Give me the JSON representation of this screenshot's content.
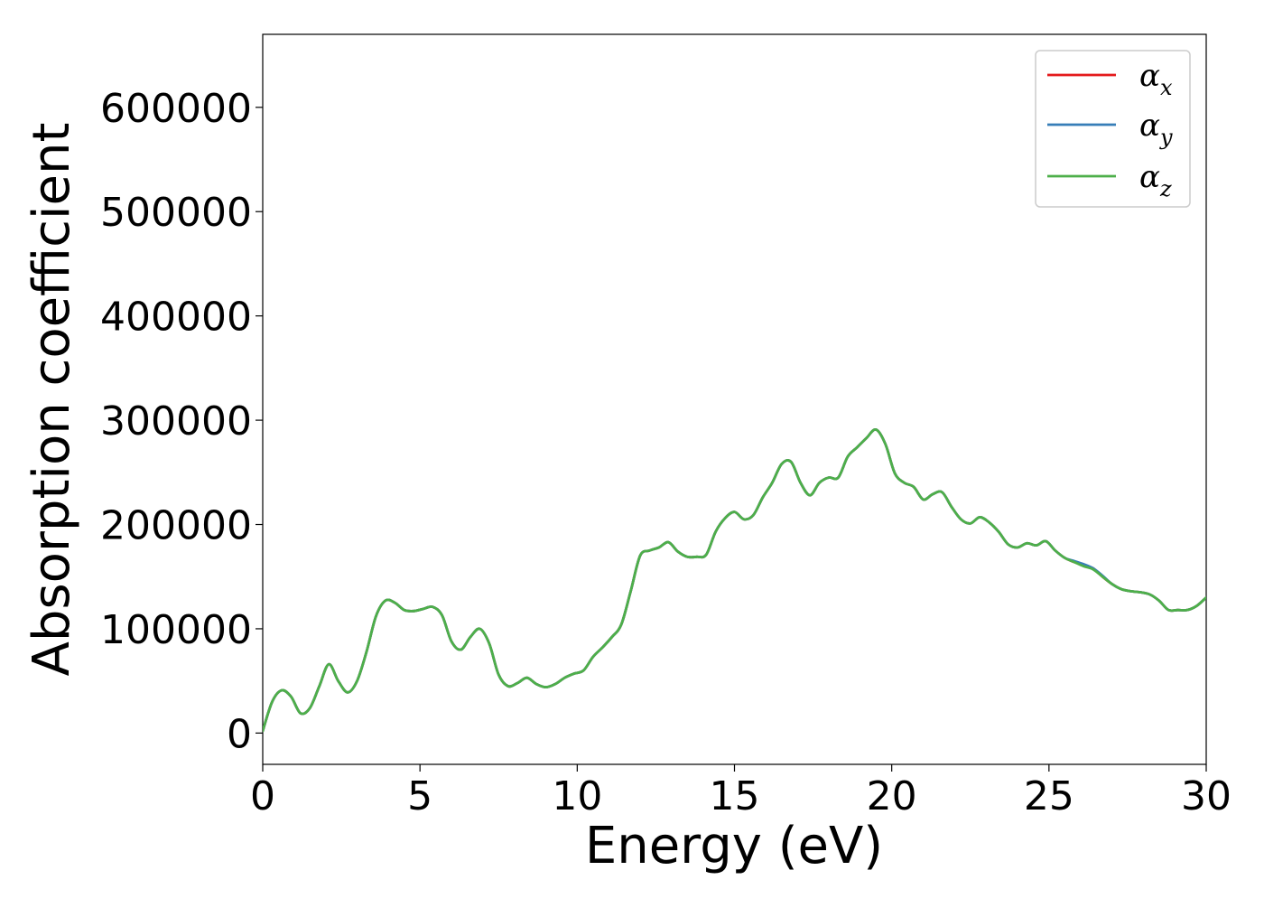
{
  "chart_data": {
    "type": "line",
    "xlabel": "Energy (eV)",
    "ylabel": "Absorption coefficient",
    "xlim": [
      0,
      30
    ],
    "ylim": [
      -30000,
      670000
    ],
    "xticks": [
      0,
      5,
      10,
      15,
      20,
      25,
      30
    ],
    "xtick_labels": [
      "0",
      "5",
      "10",
      "15",
      "20",
      "25",
      "30"
    ],
    "yticks": [
      0,
      100000,
      200000,
      300000,
      400000,
      500000,
      600000
    ],
    "ytick_labels": [
      "0",
      "100000",
      "200000",
      "300000",
      "400000",
      "500000",
      "600000"
    ],
    "grid": false,
    "legend_position": "top-right",
    "x": [
      0.0,
      0.3,
      0.6,
      0.9,
      1.2,
      1.5,
      1.8,
      2.1,
      2.4,
      2.7,
      3.0,
      3.3,
      3.6,
      3.9,
      4.2,
      4.5,
      4.8,
      5.1,
      5.4,
      5.7,
      6.0,
      6.3,
      6.6,
      6.9,
      7.2,
      7.5,
      7.8,
      8.1,
      8.4,
      8.7,
      9.0,
      9.3,
      9.6,
      9.9,
      10.2,
      10.5,
      10.8,
      11.1,
      11.4,
      11.7,
      12.0,
      12.3,
      12.6,
      12.9,
      13.2,
      13.5,
      13.8,
      14.1,
      14.4,
      14.7,
      15.0,
      15.3,
      15.6,
      15.9,
      16.2,
      16.5,
      16.8,
      17.1,
      17.4,
      17.7,
      18.0,
      18.3,
      18.6,
      18.9,
      19.2,
      19.5,
      19.8,
      20.1,
      20.4,
      20.7,
      21.0,
      21.3,
      21.6,
      21.9,
      22.2,
      22.5,
      22.8,
      23.1,
      23.4,
      23.7,
      24.0,
      24.3,
      24.6,
      24.9,
      25.2,
      25.5,
      25.8,
      26.1,
      26.4,
      26.7,
      27.0,
      27.3,
      27.6,
      27.9,
      28.2,
      28.5,
      28.8,
      29.1,
      29.4,
      29.7,
      30.0
    ],
    "series": [
      {
        "name": "α_x",
        "color": "#e41a1c",
        "values": [
          2000,
          30000,
          41000,
          35000,
          19000,
          24000,
          45000,
          66000,
          50000,
          39000,
          50000,
          78000,
          112000,
          127000,
          125000,
          118000,
          117000,
          119000,
          121000,
          113000,
          88000,
          80000,
          92000,
          100000,
          86000,
          56000,
          45000,
          48000,
          53000,
          47000,
          44000,
          47000,
          53000,
          57000,
          60000,
          73000,
          82000,
          92000,
          104000,
          136000,
          170000,
          175000,
          178000,
          183000,
          174000,
          169000,
          169000,
          171000,
          193000,
          206000,
          212000,
          205000,
          209000,
          226000,
          240000,
          258000,
          260000,
          240000,
          228000,
          240000,
          245000,
          245000,
          265000,
          274000,
          283000,
          291000,
          277000,
          249000,
          240000,
          236000,
          224000,
          229000,
          231000,
          217000,
          205000,
          201000,
          207000,
          202000,
          193000,
          181000,
          178000,
          182000,
          180000,
          184000,
          175000,
          168000,
          164000,
          161000,
          158000,
          150000,
          143000,
          138000,
          136000,
          135000,
          133000,
          127000,
          118000,
          118000,
          118000,
          122000,
          130000
        ]
      },
      {
        "name": "α_y",
        "color": "#377eb8",
        "values": [
          2000,
          30000,
          41000,
          35000,
          19000,
          24000,
          45000,
          66000,
          50000,
          39000,
          50000,
          78000,
          112000,
          127000,
          125000,
          118000,
          117000,
          119000,
          121000,
          113000,
          88000,
          80000,
          92000,
          100000,
          86000,
          56000,
          45000,
          48000,
          53000,
          47000,
          44000,
          47000,
          53000,
          57000,
          60000,
          73000,
          82000,
          92000,
          104000,
          136000,
          170000,
          175000,
          178000,
          183000,
          174000,
          169000,
          169000,
          171000,
          193000,
          206000,
          212000,
          205000,
          209000,
          226000,
          240000,
          258000,
          260000,
          240000,
          228000,
          240000,
          245000,
          245000,
          265000,
          274000,
          283000,
          291000,
          277000,
          249000,
          240000,
          236000,
          224000,
          229000,
          231000,
          217000,
          205000,
          201000,
          207000,
          202000,
          193000,
          181000,
          178000,
          182000,
          180000,
          184000,
          175000,
          168000,
          165000,
          162000,
          158000,
          151000,
          143000,
          138000,
          136000,
          135000,
          133000,
          127000,
          118000,
          118000,
          118000,
          122000,
          130000
        ]
      },
      {
        "name": "α_z",
        "color": "#4daf4a",
        "values": [
          2000,
          30000,
          41000,
          35000,
          19000,
          24000,
          45000,
          66000,
          50000,
          39000,
          50000,
          78000,
          112000,
          127000,
          125000,
          118000,
          117000,
          119000,
          121000,
          113000,
          88000,
          80000,
          92000,
          100000,
          86000,
          56000,
          45000,
          48000,
          53000,
          47000,
          44000,
          47000,
          53000,
          57000,
          60000,
          73000,
          82000,
          92000,
          104000,
          136000,
          170000,
          175000,
          178000,
          183000,
          174000,
          169000,
          169000,
          171000,
          193000,
          206000,
          212000,
          205000,
          209000,
          226000,
          240000,
          258000,
          260000,
          240000,
          228000,
          240000,
          245000,
          245000,
          265000,
          274000,
          283000,
          291000,
          277000,
          249000,
          240000,
          236000,
          224000,
          229000,
          231000,
          217000,
          205000,
          201000,
          207000,
          202000,
          193000,
          181000,
          178000,
          182000,
          180000,
          184000,
          175000,
          168000,
          164000,
          160000,
          157000,
          150000,
          143000,
          138000,
          136000,
          135000,
          133000,
          127000,
          118000,
          118000,
          118000,
          122000,
          130000
        ]
      }
    ],
    "legend": [
      {
        "base": "α",
        "sub": "x"
      },
      {
        "base": "α",
        "sub": "y"
      },
      {
        "base": "α",
        "sub": "z"
      }
    ]
  }
}
